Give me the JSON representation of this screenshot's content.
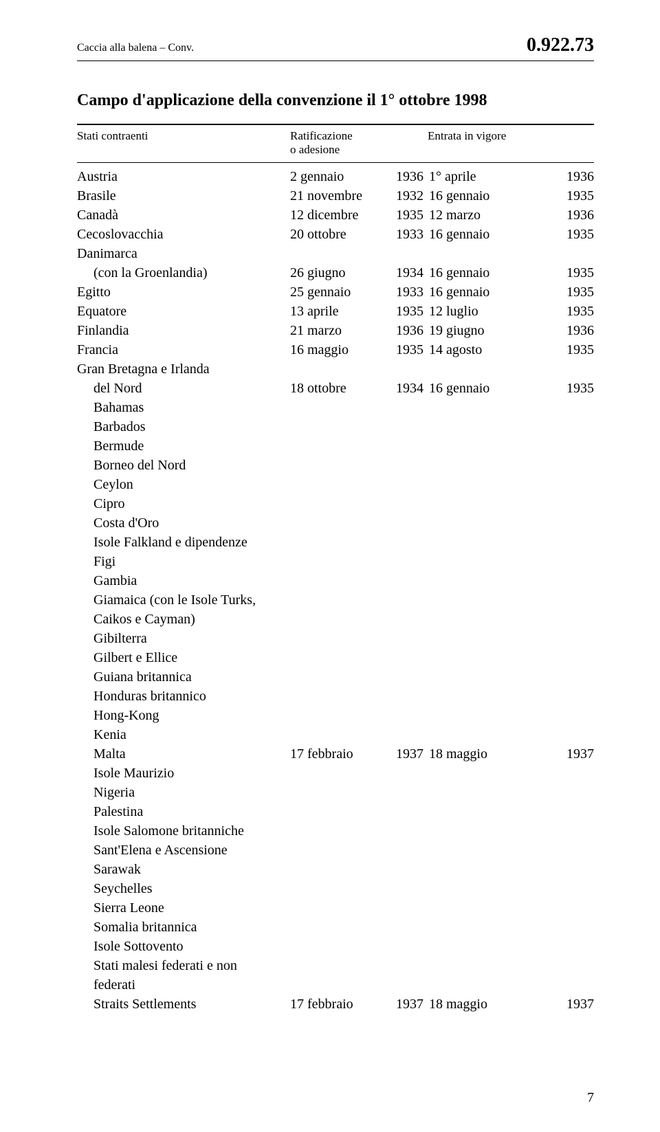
{
  "header": {
    "left": "Caccia alla balena – Conv.",
    "right": "0.922.73"
  },
  "title": "Campo d'applicazione della convenzione il 1° ottobre 1998",
  "column_headers": {
    "state": "Stati contraenti",
    "ratif_line1": "Ratificazione",
    "ratif_line2": "o adesione",
    "entry": "Entrata in vigore"
  },
  "rows": [
    {
      "state": "Austria",
      "rd": "  2 gennaio",
      "ry": "1936",
      "ed": "  1° aprile",
      "ey": "1936"
    },
    {
      "state": "Brasile",
      "rd": "21 novembre",
      "ry": "1932",
      "ed": "16 gennaio",
      "ey": "1935"
    },
    {
      "state": "Canadà",
      "rd": "12 dicembre",
      "ry": "1935",
      "ed": "12 marzo",
      "ey": "1936"
    },
    {
      "state": "Cecoslovacchia",
      "rd": "20 ottobre",
      "ry": "1933",
      "ed": "16 gennaio",
      "ey": "1935"
    },
    {
      "state": "Danimarca"
    },
    {
      "state": "(con la Groenlandia)",
      "indent": true,
      "rd": "26 giugno",
      "ry": "1934",
      "ed": "16 gennaio",
      "ey": "1935"
    },
    {
      "state": "Egitto",
      "rd": "25 gennaio",
      "ry": "1933",
      "ed": "16 gennaio",
      "ey": "1935"
    },
    {
      "state": "Equatore",
      "rd": "13 aprile",
      "ry": "1935",
      "ed": "12 luglio",
      "ey": "1935"
    },
    {
      "state": "Finlandia",
      "rd": "21 marzo",
      "ry": "1936",
      "ed": "19 giugno",
      "ey": "1936"
    },
    {
      "state": "Francia",
      "rd": "16 maggio",
      "ry": "1935",
      "ed": "14 agosto",
      "ey": "1935"
    },
    {
      "state": "Gran Bretagna e Irlanda"
    },
    {
      "state": "del Nord",
      "indent": true,
      "rd": "18 ottobre",
      "ry": "1934",
      "ed": "16 gennaio",
      "ey": "1935"
    },
    {
      "state": "Bahamas",
      "indent": true
    },
    {
      "state": "Barbados",
      "indent": true
    },
    {
      "state": "Bermude",
      "indent": true
    },
    {
      "state": "Borneo del Nord",
      "indent": true
    },
    {
      "state": "Ceylon",
      "indent": true
    },
    {
      "state": "Cipro",
      "indent": true
    },
    {
      "state": "Costa d'Oro",
      "indent": true
    },
    {
      "state": "Isole Falkland e dipendenze",
      "indent": true
    },
    {
      "state": "Figi",
      "indent": true
    },
    {
      "state": "Gambia",
      "indent": true
    },
    {
      "state": "Giamaica (con le Isole Turks,",
      "indent": true
    },
    {
      "state": " Caikos e Cayman)",
      "indent": true
    },
    {
      "state": "Gibilterra",
      "indent": true
    },
    {
      "state": "Gilbert e Ellice",
      "indent": true
    },
    {
      "state": "Guiana britannica",
      "indent": true
    },
    {
      "state": "Honduras britannico",
      "indent": true
    },
    {
      "state": "Hong-Kong",
      "indent": true
    },
    {
      "state": "Kenia",
      "indent": true
    },
    {
      "state": "Malta",
      "indent": true,
      "rd": "17 febbraio",
      "ry": "1937",
      "ed": "18 maggio",
      "ey": "1937"
    },
    {
      "state": "Isole Maurizio",
      "indent": true
    },
    {
      "state": "Nigeria",
      "indent": true
    },
    {
      "state": "Palestina",
      "indent": true
    },
    {
      "state": "Isole Salomone britanniche",
      "indent": true
    },
    {
      "state": "Sant'Elena e Ascensione",
      "indent": true
    },
    {
      "state": "Sarawak",
      "indent": true
    },
    {
      "state": "Seychelles",
      "indent": true
    },
    {
      "state": "Sierra Leone",
      "indent": true
    },
    {
      "state": "Somalia britannica",
      "indent": true
    },
    {
      "state": "Isole Sottovento",
      "indent": true
    },
    {
      "state": "Stati malesi federati e non",
      "indent": true
    },
    {
      "state": " federati",
      "indent": true
    },
    {
      "state": "Straits Settlements",
      "indent": true,
      "rd": "17 febbraio",
      "ry": "1937",
      "ed": "18 maggio",
      "ey": "1937"
    }
  ],
  "page_number": "7"
}
